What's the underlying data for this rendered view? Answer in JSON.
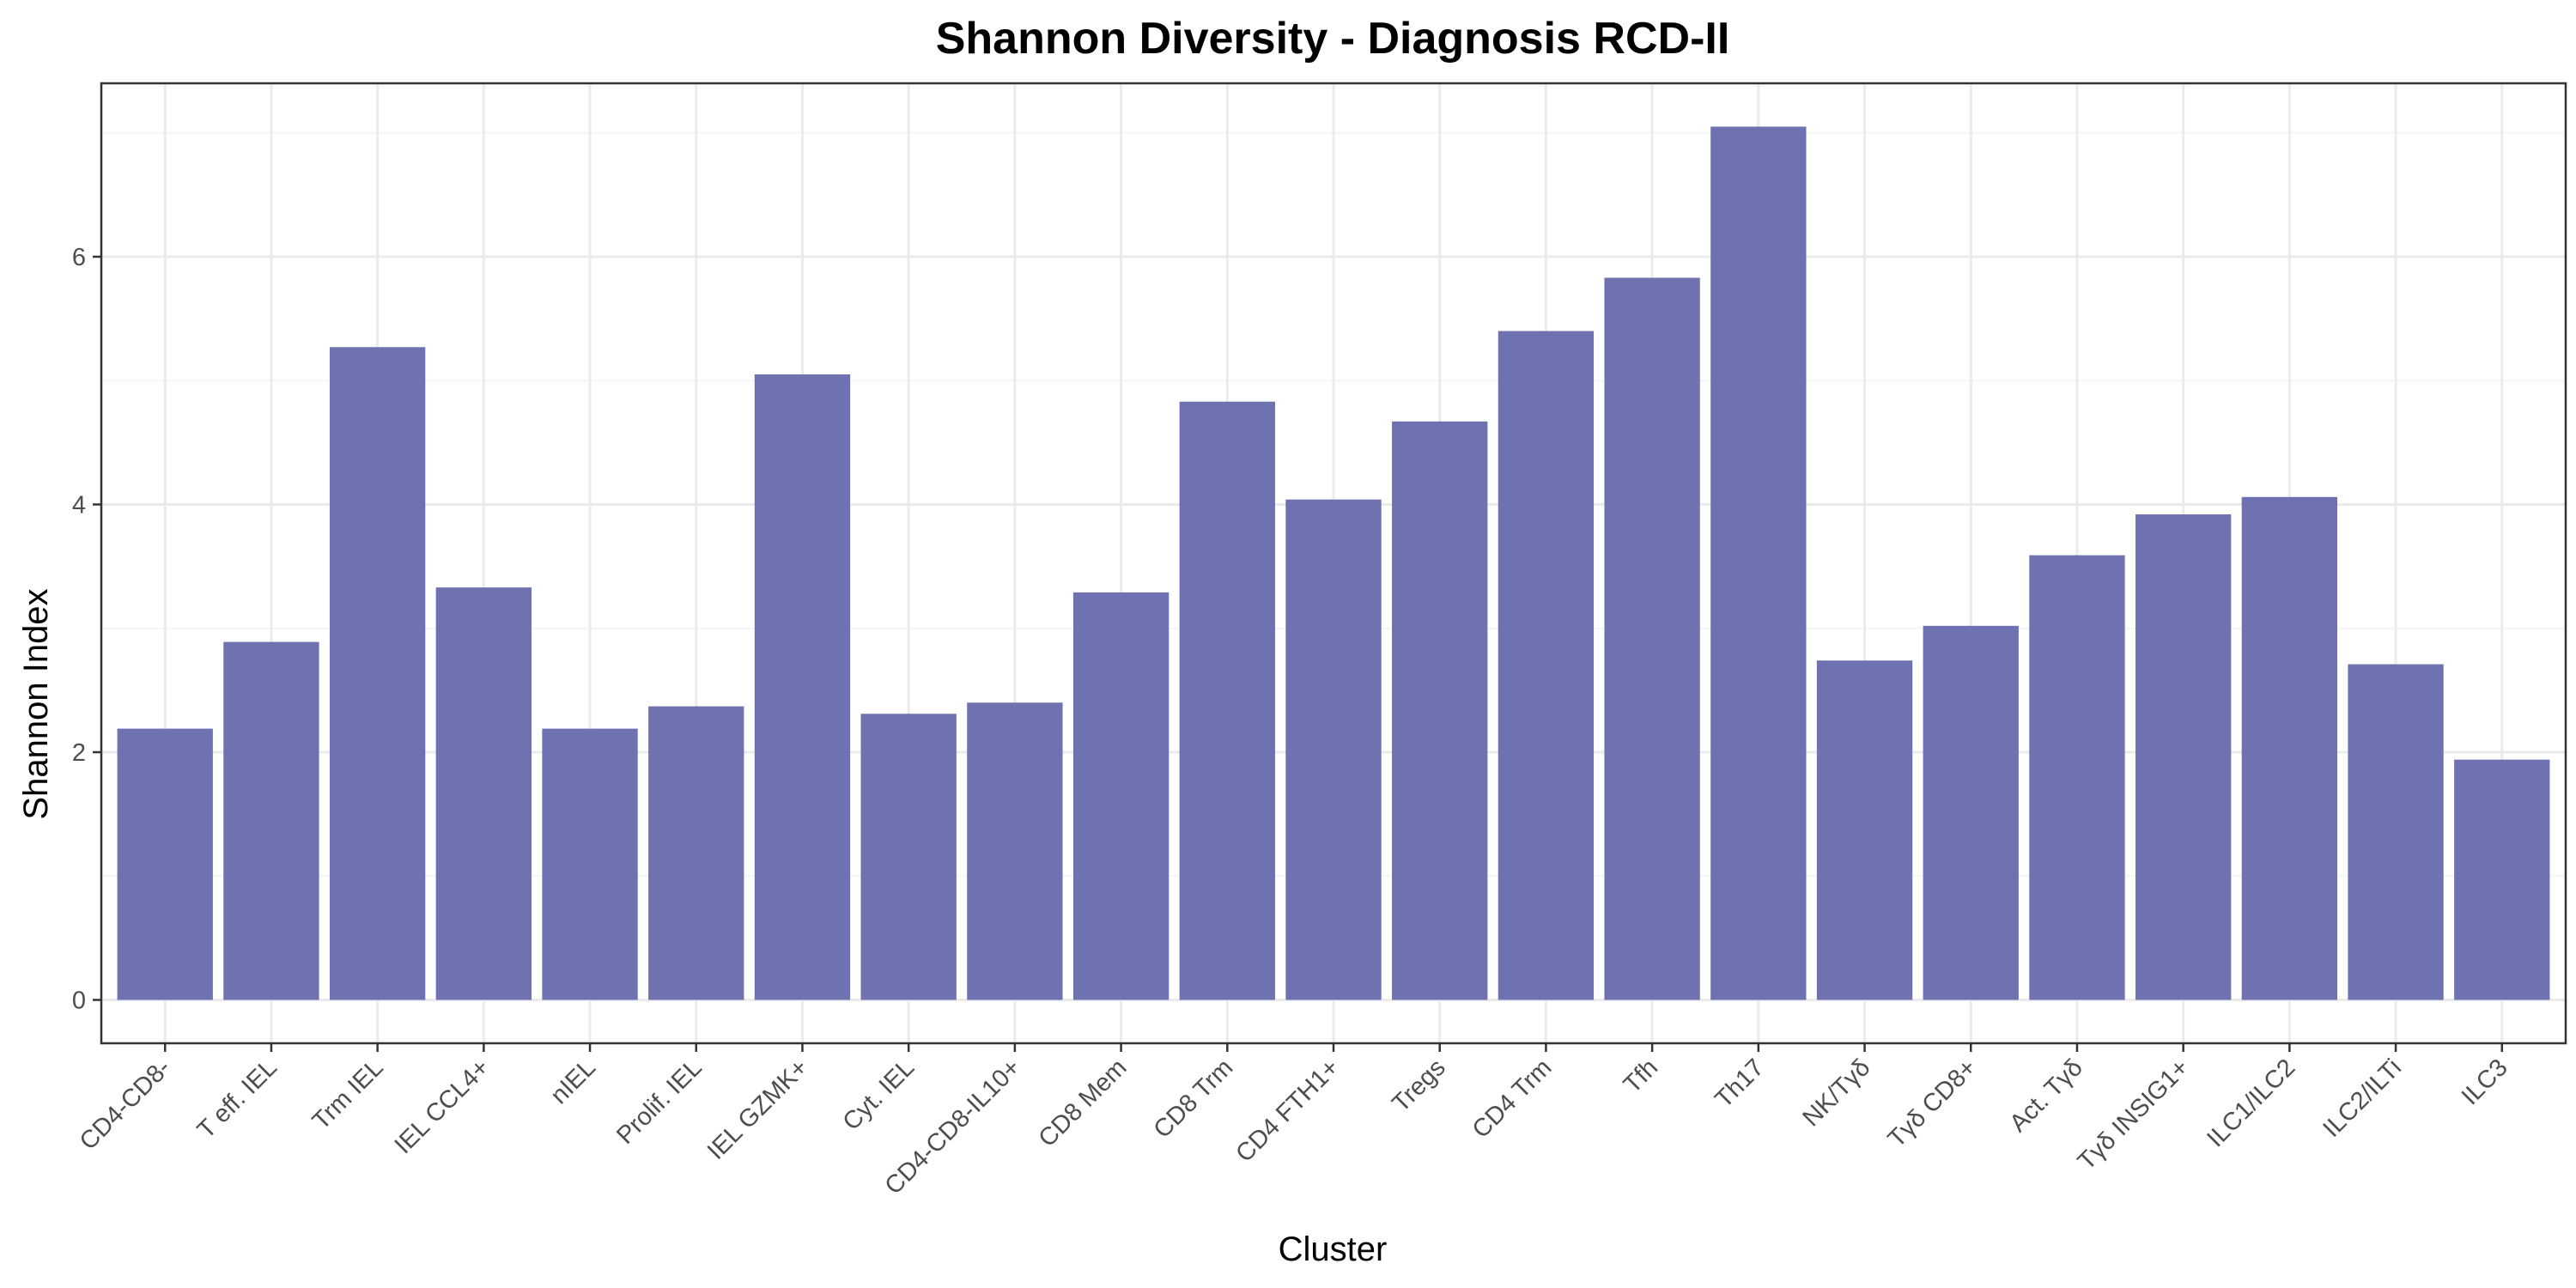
{
  "chart_data": {
    "type": "bar",
    "title": "Shannon Diversity - Diagnosis RCD-II",
    "xlabel": "Cluster",
    "ylabel": "Shannon Index",
    "ylim": [
      -0.35,
      7.4
    ],
    "yticks": [
      0,
      2,
      4,
      6
    ],
    "grid": true,
    "bar_color": "#6f72b0",
    "categories": [
      "CD4-CD8-",
      "T eff. IEL",
      "Trm IEL",
      "IEL CCL4+",
      "nIEL",
      "Prolif. IEL",
      "IEL GZMK+",
      "Cyt. IEL",
      "CD4-CD8-IL10+",
      "CD8 Mem",
      "CD8 Trm",
      "CD4 FTH1+",
      "Tregs",
      "CD4 Trm",
      "Tfh",
      "Th17",
      "NK/Tγδ",
      "Tγδ CD8+",
      "Act. Tγδ",
      "Tγδ INSIG1+",
      "ILC1/ILC2",
      "ILC2/ILTi",
      "ILC3"
    ],
    "values": [
      2.19,
      2.89,
      5.27,
      3.33,
      2.19,
      2.37,
      5.05,
      2.31,
      2.4,
      3.29,
      4.83,
      4.04,
      4.67,
      5.4,
      5.83,
      7.05,
      2.74,
      3.02,
      3.59,
      3.92,
      4.06,
      2.71,
      1.94
    ]
  }
}
